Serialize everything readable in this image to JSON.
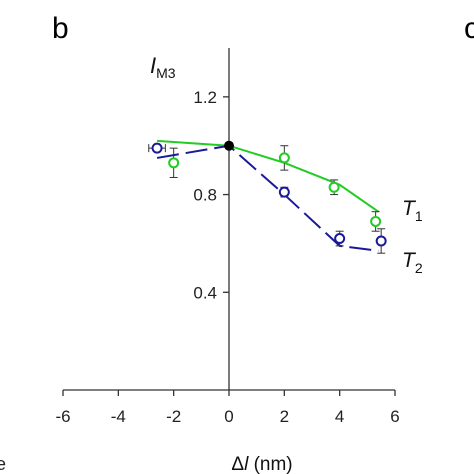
{
  "panel_letter": "b",
  "neighbor_letter_fragment": "c",
  "left_edge_fragment": "e",
  "chart_data": {
    "type": "scatter",
    "title": "",
    "ylabel": {
      "main": "I",
      "sub": "M3"
    },
    "xlabel": {
      "prefix": "Δ",
      "var": "l",
      "unit": " (nm)"
    },
    "xlim": [
      -6,
      6
    ],
    "ylim": [
      0.0,
      1.4
    ],
    "xticks": [
      -6,
      -4,
      -2,
      0,
      2,
      4,
      6
    ],
    "xtick_labels": [
      "-6",
      "-4",
      "-2",
      "0",
      "2",
      "4",
      "6"
    ],
    "yticks": [
      0.4,
      0.8,
      1.2
    ],
    "ytick_labels": [
      "0.4",
      "0.8",
      "1.2"
    ],
    "grid": false,
    "reference_point": {
      "x": 0,
      "y": 1.0
    },
    "series": [
      {
        "name": "T1",
        "label_main": "T",
        "label_sub": "1",
        "color": "#22cc22",
        "line_style": "solid",
        "line": {
          "x": [
            -2.6,
            0,
            2,
            4,
            5.4
          ],
          "y": [
            1.02,
            1.0,
            0.93,
            0.84,
            0.73
          ]
        },
        "points": [
          {
            "x": -2.0,
            "y": 0.93,
            "err": 0.06
          },
          {
            "x": 2.0,
            "y": 0.95,
            "err": 0.05
          },
          {
            "x": 3.8,
            "y": 0.83,
            "err": 0.03
          },
          {
            "x": 5.3,
            "y": 0.69,
            "err": 0.04
          }
        ]
      },
      {
        "name": "T2",
        "label_main": "T",
        "label_sub": "2",
        "color": "#1a1a99",
        "line_style": "dashed",
        "line": {
          "x": [
            -2.6,
            0,
            2,
            4,
            5.4
          ],
          "y": [
            0.95,
            1.0,
            0.8,
            0.59,
            0.57
          ]
        },
        "points": [
          {
            "x": -2.6,
            "y": 0.99,
            "xerr": 0.3
          },
          {
            "x": 2.0,
            "y": 0.81,
            "err": 0.02
          },
          {
            "x": 4.0,
            "y": 0.62,
            "err": 0.03
          },
          {
            "x": 5.5,
            "y": 0.61,
            "err": 0.05
          }
        ]
      }
    ]
  }
}
